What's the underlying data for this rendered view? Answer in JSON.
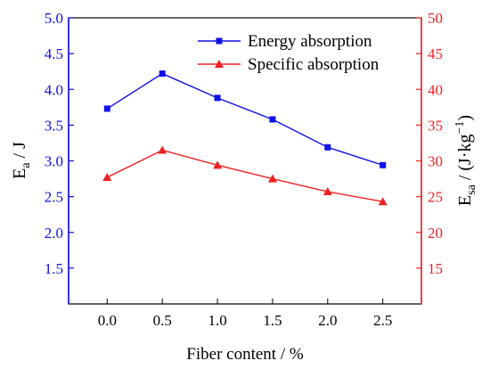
{
  "chart_data": {
    "type": "line",
    "x": [
      0.0,
      0.5,
      1.0,
      1.5,
      2.0,
      2.5
    ],
    "x_tick_labels": [
      "0.0",
      "0.5",
      "1.0",
      "1.5",
      "2.0",
      "2.5"
    ],
    "xlabel": "Fiber content / %",
    "xlim": [
      -0.35,
      2.85
    ],
    "ylabel_left": {
      "main": "E",
      "sub": "a",
      "tail": " / J"
    },
    "ylim_left": [
      1.0,
      5.0
    ],
    "y_left_ticks": [
      "1.5",
      "2.0",
      "2.5",
      "3.0",
      "3.5",
      "4.0",
      "4.5",
      "5.0"
    ],
    "ylabel_right": {
      "main": "E",
      "sub": "sa",
      "tail": " / (J·kg",
      "sup": "−1",
      "end": ")"
    },
    "ylim_right": [
      10,
      50
    ],
    "y_right_ticks": [
      "15",
      "20",
      "25",
      "30",
      "35",
      "40",
      "45",
      "50"
    ],
    "grid": false,
    "legend_position": "top-right",
    "series": [
      {
        "name": "Energy absorption",
        "axis": "left",
        "marker": "square",
        "color": "#1010e8",
        "values": [
          3.73,
          4.22,
          3.88,
          3.58,
          3.19,
          2.94
        ]
      },
      {
        "name": "Specific absorption",
        "axis": "right",
        "marker": "triangle",
        "color": "#ee2222",
        "values": [
          27.7,
          31.5,
          29.4,
          27.5,
          25.7,
          24.3
        ]
      }
    ]
  }
}
